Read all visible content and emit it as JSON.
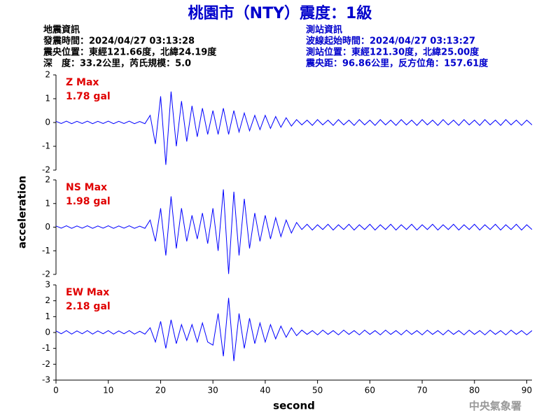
{
  "header": {
    "title": "桃園市（NTY）震度：1級",
    "quake_info": [
      "地震資訊",
      "發震時間：2024/04/27 03:13:28",
      "震央位置：東經121.66度，北緯24.19度",
      "深　度：33.2公里，芮氏規模：5.0"
    ],
    "station_info": [
      "測站資訊",
      "波線起始時間：2024/04/27 03:13:27",
      "測站位置：東經121.30度，北緯25.00度",
      "震央距：96.86公里，反方位角：157.61度"
    ],
    "ylabel": "acceleration",
    "credit": "中央氣象署"
  },
  "chart_data": [
    {
      "type": "line",
      "label": "Z Max",
      "max_label": "1.78 gal",
      "xlim": [
        0,
        91
      ],
      "ylim": [
        -2,
        2
      ],
      "yticks": [
        -2,
        -1,
        0,
        1,
        2
      ],
      "x": [
        0,
        1,
        2,
        3,
        4,
        5,
        6,
        7,
        8,
        9,
        10,
        11,
        12,
        13,
        14,
        15,
        16,
        17,
        18,
        19,
        20,
        21,
        22,
        23,
        24,
        25,
        26,
        27,
        28,
        29,
        30,
        31,
        32,
        33,
        34,
        35,
        36,
        37,
        38,
        39,
        40,
        41,
        42,
        43,
        44,
        45,
        46,
        47,
        48,
        49,
        50,
        51,
        52,
        53,
        54,
        55,
        56,
        57,
        58,
        59,
        60,
        61,
        62,
        63,
        64,
        65,
        66,
        67,
        68,
        69,
        70,
        71,
        72,
        73,
        74,
        75,
        76,
        77,
        78,
        79,
        80,
        81,
        82,
        83,
        84,
        85,
        86,
        87,
        88,
        89,
        90,
        91
      ],
      "series": [
        {
          "color": "#0000ff",
          "values": [
            0.05,
            -0.04,
            0.06,
            -0.05,
            0.05,
            -0.04,
            0.06,
            -0.05,
            0.05,
            -0.04,
            0.06,
            -0.05,
            0.05,
            -0.04,
            0.06,
            -0.05,
            0.04,
            -0.05,
            0.3,
            -0.9,
            1.1,
            -1.78,
            1.3,
            -1.0,
            0.9,
            -0.8,
            0.7,
            -0.6,
            0.6,
            -0.5,
            0.5,
            -0.5,
            0.6,
            -0.5,
            0.5,
            -0.4,
            0.4,
            -0.35,
            0.3,
            -0.3,
            0.3,
            -0.25,
            0.25,
            -0.2,
            0.2,
            -0.15,
            0.12,
            -0.1,
            0.1,
            -0.12,
            0.12,
            -0.1,
            0.1,
            -0.12,
            0.12,
            -0.1,
            0.1,
            -0.12,
            0.12,
            -0.1,
            0.1,
            -0.12,
            0.12,
            -0.1,
            0.1,
            -0.12,
            0.12,
            -0.1,
            0.1,
            -0.12,
            0.12,
            -0.1,
            0.1,
            -0.12,
            0.12,
            -0.1,
            0.1,
            -0.12,
            0.12,
            -0.1,
            0.1,
            -0.12,
            0.12,
            -0.1,
            0.1,
            -0.12,
            0.12,
            -0.1,
            0.1,
            -0.12,
            0.1,
            -0.1
          ]
        }
      ]
    },
    {
      "type": "line",
      "label": "NS Max",
      "max_label": "1.98 gal",
      "xlim": [
        0,
        91
      ],
      "ylim": [
        -2,
        2
      ],
      "yticks": [
        -2,
        -1,
        0,
        1,
        2
      ],
      "x": [
        0,
        1,
        2,
        3,
        4,
        5,
        6,
        7,
        8,
        9,
        10,
        11,
        12,
        13,
        14,
        15,
        16,
        17,
        18,
        19,
        20,
        21,
        22,
        23,
        24,
        25,
        26,
        27,
        28,
        29,
        30,
        31,
        32,
        33,
        34,
        35,
        36,
        37,
        38,
        39,
        40,
        41,
        42,
        43,
        44,
        45,
        46,
        47,
        48,
        49,
        50,
        51,
        52,
        53,
        54,
        55,
        56,
        57,
        58,
        59,
        60,
        61,
        62,
        63,
        64,
        65,
        66,
        67,
        68,
        69,
        70,
        71,
        72,
        73,
        74,
        75,
        76,
        77,
        78,
        79,
        80,
        81,
        82,
        83,
        84,
        85,
        86,
        87,
        88,
        89,
        90,
        91
      ],
      "series": [
        {
          "color": "#0000ff",
          "values": [
            0.05,
            -0.04,
            0.06,
            -0.05,
            0.05,
            -0.04,
            0.06,
            -0.05,
            0.05,
            -0.04,
            0.06,
            -0.05,
            0.05,
            -0.04,
            0.06,
            -0.05,
            0.04,
            -0.05,
            0.3,
            -0.6,
            0.8,
            -1.2,
            1.3,
            -0.9,
            0.8,
            -0.6,
            0.5,
            -0.5,
            0.6,
            -0.7,
            0.8,
            -1.0,
            1.6,
            -1.98,
            1.5,
            -1.2,
            1.2,
            -0.9,
            0.6,
            -0.6,
            0.5,
            -0.5,
            0.4,
            -0.4,
            0.3,
            -0.25,
            0.2,
            -0.1,
            0.12,
            -0.12,
            0.1,
            -0.1,
            0.12,
            -0.12,
            0.1,
            -0.1,
            0.12,
            -0.12,
            0.1,
            -0.1,
            0.12,
            -0.12,
            0.1,
            -0.1,
            0.12,
            -0.12,
            0.1,
            -0.1,
            0.12,
            -0.12,
            0.1,
            -0.1,
            0.12,
            -0.12,
            0.1,
            -0.1,
            0.12,
            -0.12,
            0.1,
            -0.1,
            0.12,
            -0.12,
            0.1,
            -0.1,
            0.12,
            -0.12,
            0.1,
            -0.1,
            0.12,
            -0.12,
            0.1,
            -0.1
          ]
        }
      ]
    },
    {
      "type": "line",
      "label": "EW Max",
      "max_label": "2.18 gal",
      "xlim": [
        0,
        91
      ],
      "ylim": [
        -3,
        3
      ],
      "yticks": [
        -3,
        -2,
        -1,
        0,
        1,
        2,
        3
      ],
      "xticks": [
        0,
        10,
        20,
        30,
        40,
        50,
        60,
        70,
        80,
        90
      ],
      "xlabel": "second",
      "x": [
        0,
        1,
        2,
        3,
        4,
        5,
        6,
        7,
        8,
        9,
        10,
        11,
        12,
        13,
        14,
        15,
        16,
        17,
        18,
        19,
        20,
        21,
        22,
        23,
        24,
        25,
        26,
        27,
        28,
        29,
        30,
        31,
        32,
        33,
        34,
        35,
        36,
        37,
        38,
        39,
        40,
        41,
        42,
        43,
        44,
        45,
        46,
        47,
        48,
        49,
        50,
        51,
        52,
        53,
        54,
        55,
        56,
        57,
        58,
        59,
        60,
        61,
        62,
        63,
        64,
        65,
        66,
        67,
        68,
        69,
        70,
        71,
        72,
        73,
        74,
        75,
        76,
        77,
        78,
        79,
        80,
        81,
        82,
        83,
        84,
        85,
        86,
        87,
        88,
        89,
        90,
        91
      ],
      "series": [
        {
          "color": "#0000ff",
          "values": [
            0.1,
            -0.08,
            0.12,
            -0.1,
            0.1,
            -0.08,
            0.12,
            -0.1,
            0.1,
            -0.08,
            0.12,
            -0.1,
            0.1,
            -0.08,
            0.12,
            -0.1,
            0.08,
            -0.1,
            0.3,
            -0.6,
            0.7,
            -1.0,
            0.8,
            -0.7,
            0.5,
            -0.5,
            0.5,
            -0.6,
            0.6,
            -0.6,
            -0.8,
            1.2,
            -1.5,
            2.18,
            -1.8,
            1.2,
            -1.0,
            0.9,
            -0.7,
            0.6,
            -0.6,
            0.5,
            -0.4,
            0.4,
            -0.3,
            0.3,
            -0.2,
            0.15,
            -0.12,
            0.12,
            -0.15,
            0.15,
            -0.12,
            0.12,
            -0.15,
            0.15,
            -0.12,
            0.12,
            -0.15,
            0.15,
            -0.12,
            0.12,
            -0.15,
            0.15,
            -0.12,
            0.12,
            -0.15,
            0.15,
            -0.12,
            0.12,
            -0.15,
            0.15,
            -0.12,
            0.12,
            -0.15,
            0.15,
            -0.12,
            0.12,
            -0.15,
            0.15,
            -0.12,
            0.12,
            -0.15,
            0.15,
            -0.12,
            0.12,
            -0.15,
            0.15,
            -0.12,
            0.12,
            -0.15,
            0.12
          ]
        }
      ]
    }
  ]
}
